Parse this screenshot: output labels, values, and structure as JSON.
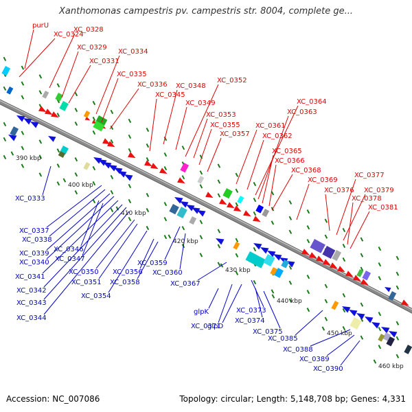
{
  "title": "Xanthomonas campestris pv. campestris str. 8004, complete ge...",
  "footer": {
    "accession": "Accession: NC_007086",
    "stats": "Topology: circular; Length: 5,148,708 bp; Genes: 4,331"
  },
  "colors": {
    "backbone": "#8a8a8a",
    "forward_label": "#e00000",
    "reverse_label": "#0000cc",
    "tick": "#1a7a1a",
    "forward_gene": "#ee1111",
    "reverse_gene": "#1111dd"
  },
  "scale_labels": [
    "390 kbp",
    "400 kbp",
    "410 kbp",
    "420 kbp",
    "430 kbp",
    "440 kbp",
    "450 kbp",
    "460 kbp"
  ],
  "top_labels": [
    "purU",
    "XC_0324",
    "XC_0328",
    "XC_0329",
    "XC_0331",
    "XC_0334",
    "XC_0335",
    "XC_0336",
    "XC_0345",
    "XC_0348",
    "XC_0349",
    "XC_0352",
    "XC_0353",
    "XC_0355",
    "XC_0357",
    "XC_0361",
    "XC_0362",
    "XC_0364",
    "XC_0363",
    "XC_0365",
    "XC_0366",
    "XC_0368",
    "XC_0369",
    "XC_0376",
    "XC_0377",
    "XC_0379",
    "XC_0378",
    "XC_0381"
  ],
  "bottom_labels": [
    "XC_0333",
    "XC_0337",
    "XC_0338",
    "XC_0339",
    "XC_0340",
    "XC_0341",
    "XC_0342",
    "XC_0343",
    "XC_0344",
    "XC_0346",
    "XC_0347",
    "XC_0350",
    "XC_0351",
    "XC_0354",
    "XC_0356",
    "XC_0358",
    "XC_0359",
    "XC_0360",
    "XC_0367",
    "glpK",
    "XC_0371",
    "glpD",
    "XC_0373",
    "XC_0374",
    "XC_0375",
    "XC_0385",
    "XC_0388",
    "XC_0389",
    "XC_0390"
  ]
}
